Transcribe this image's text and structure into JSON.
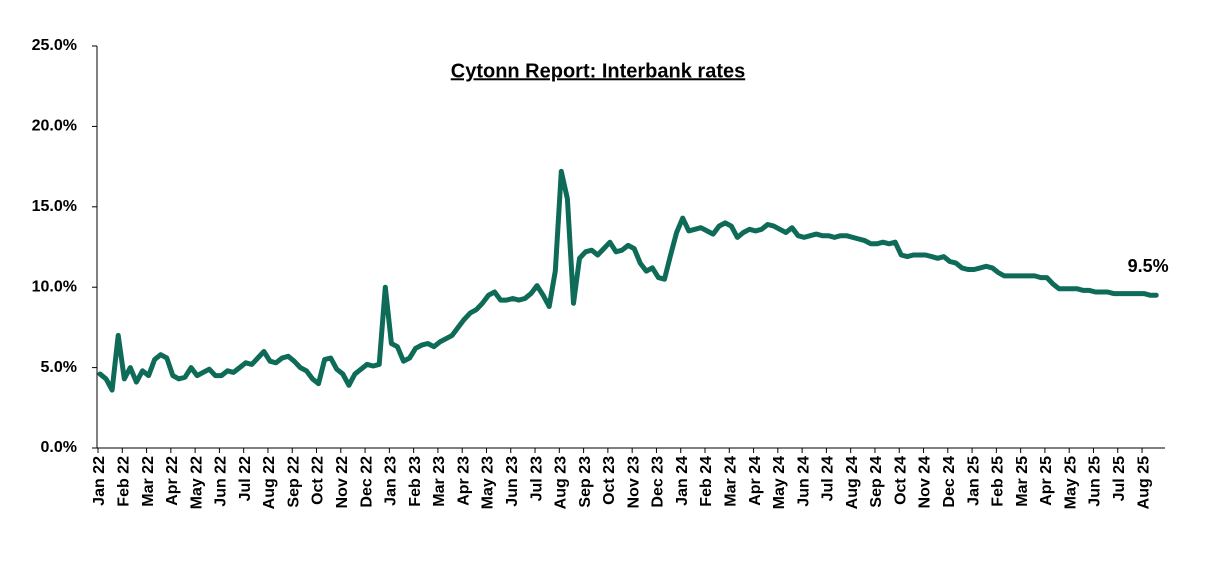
{
  "chart_data": {
    "type": "line",
    "title": "Cytonn Report: Interbank rates",
    "annotation": "9.5%",
    "color": "#0e6b58",
    "categories": [
      "Jan 22",
      null,
      null,
      null,
      "Feb 22",
      null,
      null,
      null,
      "Mar 22",
      null,
      null,
      null,
      "Apr 22",
      null,
      null,
      null,
      "May 22",
      null,
      null,
      null,
      "Jun 22",
      null,
      null,
      null,
      "Jul 22",
      null,
      null,
      null,
      "Aug 22",
      null,
      null,
      null,
      "Sep 22",
      null,
      null,
      null,
      "Oct 22",
      null,
      null,
      null,
      "Nov 22",
      null,
      null,
      null,
      "Dec 22",
      null,
      null,
      null,
      "Jan 23",
      null,
      null,
      null,
      "Feb 23",
      null,
      null,
      null,
      "Mar 23",
      null,
      null,
      null,
      "Apr 23",
      null,
      null,
      null,
      "May 23",
      null,
      null,
      null,
      "Jun 23",
      null,
      null,
      null,
      "Jul 23",
      null,
      null,
      null,
      "Aug 23",
      null,
      null,
      null,
      "Sep 23",
      null,
      null,
      null,
      "Oct 23",
      null,
      null,
      null,
      "Nov 23",
      null,
      null,
      null,
      "Dec 23",
      null,
      null,
      null,
      "Jan 24",
      null,
      null,
      null,
      "Feb 24",
      null,
      null,
      null,
      "Mar 24",
      null,
      null,
      null,
      "Apr 24",
      null,
      null,
      null,
      "May 24",
      null,
      null,
      null,
      "Jun 24",
      null,
      null,
      null,
      "Jul 24",
      null,
      null,
      null,
      "Aug 24",
      null,
      null,
      null,
      "Sep 24",
      null,
      null,
      null,
      "Oct 24",
      null,
      null,
      null,
      "Nov 24",
      null,
      null,
      null,
      "Dec 24",
      null,
      null,
      null,
      "Jan 25",
      null,
      null,
      null,
      "Feb 25",
      null,
      null,
      null,
      "Mar 25",
      null,
      null,
      null,
      "Apr 25",
      null,
      null,
      null,
      "May 25",
      null,
      null,
      null,
      "Jun 25",
      null,
      null,
      null,
      "Jul 25",
      null,
      null,
      null,
      "Aug 25",
      null,
      null
    ],
    "values": [
      4.6,
      4.3,
      3.6,
      7.0,
      4.3,
      5.0,
      4.1,
      4.8,
      4.5,
      5.5,
      5.8,
      5.6,
      4.5,
      4.3,
      4.4,
      5.0,
      4.5,
      4.7,
      4.9,
      4.5,
      4.5,
      4.8,
      4.7,
      5.0,
      5.3,
      5.2,
      5.6,
      6.0,
      5.4,
      5.3,
      5.6,
      5.7,
      5.4,
      5.0,
      4.8,
      4.3,
      4.0,
      5.5,
      5.6,
      4.9,
      4.6,
      3.9,
      4.6,
      4.9,
      5.2,
      5.1,
      5.2,
      10.0,
      6.5,
      6.3,
      5.4,
      5.6,
      6.2,
      6.4,
      6.5,
      6.3,
      6.6,
      6.8,
      7.0,
      7.5,
      8.0,
      8.4,
      8.6,
      9.0,
      9.5,
      9.7,
      9.2,
      9.2,
      9.3,
      9.2,
      9.3,
      9.6,
      10.1,
      9.5,
      8.8,
      11.0,
      17.2,
      15.5,
      9.0,
      11.8,
      12.2,
      12.3,
      12.0,
      12.4,
      12.8,
      12.2,
      12.3,
      12.6,
      12.4,
      11.5,
      11.0,
      11.2,
      10.6,
      10.5,
      12.0,
      13.4,
      14.3,
      13.5,
      13.6,
      13.7,
      13.5,
      13.3,
      13.8,
      14.0,
      13.8,
      13.1,
      13.4,
      13.6,
      13.5,
      13.6,
      13.9,
      13.8,
      13.6,
      13.4,
      13.7,
      13.2,
      13.1,
      13.2,
      13.3,
      13.2,
      13.2,
      13.1,
      13.2,
      13.2,
      13.1,
      13.0,
      12.9,
      12.7,
      12.7,
      12.8,
      12.7,
      12.8,
      12.0,
      11.9,
      12.0,
      12.0,
      12.0,
      11.9,
      11.8,
      11.9,
      11.6,
      11.5,
      11.2,
      11.1,
      11.1,
      11.2,
      11.3,
      11.2,
      10.9,
      10.7,
      10.7,
      10.7,
      10.7,
      10.7,
      10.7,
      10.6,
      10.6,
      10.2,
      9.9,
      9.9,
      9.9,
      9.9,
      9.8,
      9.8,
      9.7,
      9.7,
      9.7,
      9.6,
      9.6,
      9.6,
      9.6,
      9.6,
      9.6,
      9.5,
      9.5
    ],
    "ylim": [
      0,
      25
    ],
    "yticks": [
      {
        "value": 0,
        "label": "0.0%"
      },
      {
        "value": 5,
        "label": "5.0%"
      },
      {
        "value": 10,
        "label": "10.0%"
      },
      {
        "value": 15,
        "label": "15.0%"
      },
      {
        "value": 20,
        "label": "20.0%"
      },
      {
        "value": 25,
        "label": "25.0%"
      }
    ],
    "grid": false
  }
}
